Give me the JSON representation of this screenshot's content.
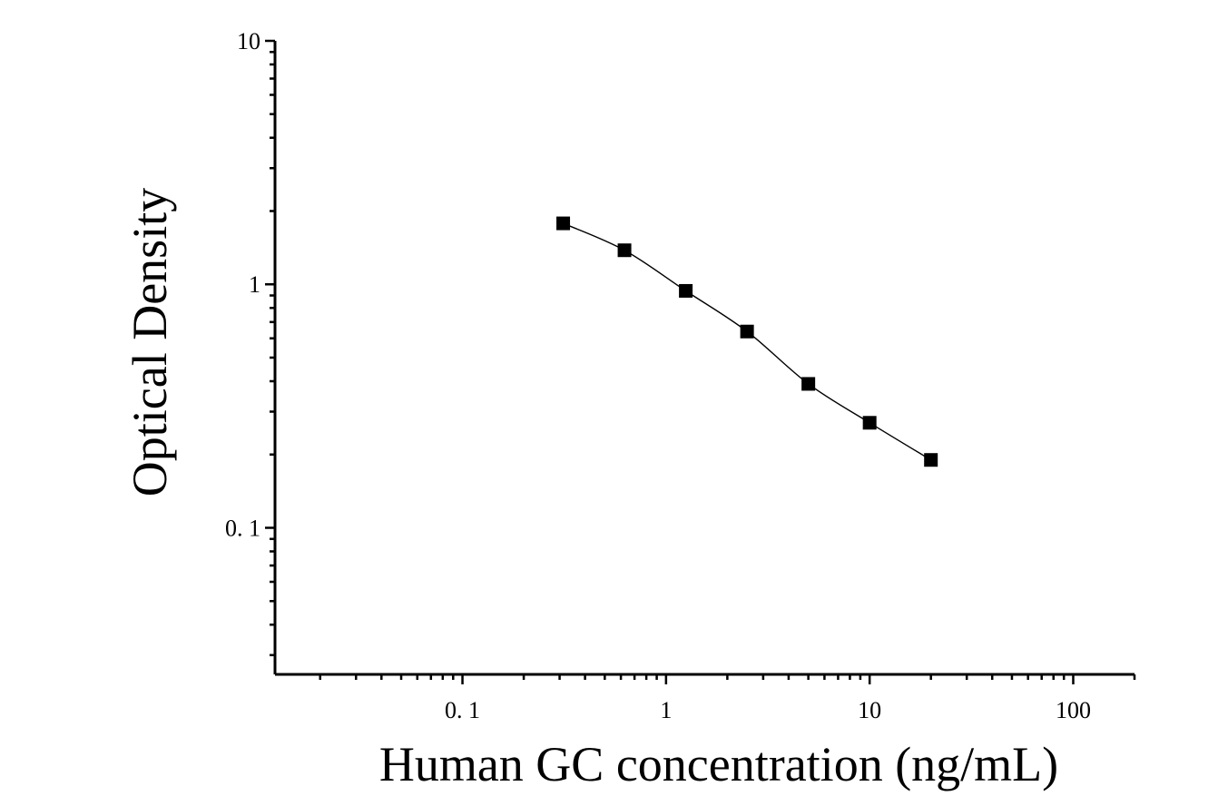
{
  "chart_data": {
    "type": "scatter",
    "title": "",
    "xlabel": "Human GC concentration (ng/mL)",
    "ylabel": "Optical Density",
    "x_scale": "log",
    "y_scale": "log",
    "xlim": [
      0.012,
      200
    ],
    "ylim": [
      0.025,
      10
    ],
    "x_ticks": [
      {
        "value": 0.1,
        "label": "0. 1"
      },
      {
        "value": 1,
        "label": "1"
      },
      {
        "value": 10,
        "label": "10"
      },
      {
        "value": 100,
        "label": "100"
      }
    ],
    "y_ticks": [
      {
        "value": 10,
        "label": "10"
      },
      {
        "value": 1,
        "label": "1"
      },
      {
        "value": 0.1,
        "label": "0. 1"
      }
    ],
    "grid": false,
    "legend": "none",
    "series": [
      {
        "marker": "square",
        "color": "#000000",
        "fit_line": true,
        "points": [
          {
            "x": 0.3125,
            "y": 1.78
          },
          {
            "x": 0.625,
            "y": 1.38
          },
          {
            "x": 1.25,
            "y": 0.94
          },
          {
            "x": 2.5,
            "y": 0.64
          },
          {
            "x": 5,
            "y": 0.39
          },
          {
            "x": 10,
            "y": 0.27
          },
          {
            "x": 20,
            "y": 0.19
          }
        ]
      }
    ]
  }
}
